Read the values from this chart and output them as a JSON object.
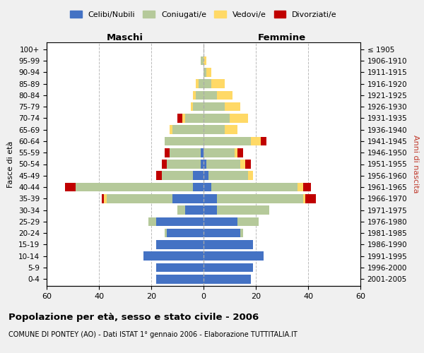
{
  "age_groups": [
    "0-4",
    "5-9",
    "10-14",
    "15-19",
    "20-24",
    "25-29",
    "30-34",
    "35-39",
    "40-44",
    "45-49",
    "50-54",
    "55-59",
    "60-64",
    "65-69",
    "70-74",
    "75-79",
    "80-84",
    "85-89",
    "90-94",
    "95-99",
    "100+"
  ],
  "birth_years": [
    "2001-2005",
    "1996-2000",
    "1991-1995",
    "1986-1990",
    "1981-1985",
    "1976-1980",
    "1971-1975",
    "1966-1970",
    "1961-1965",
    "1956-1960",
    "1951-1955",
    "1946-1950",
    "1941-1945",
    "1936-1940",
    "1931-1935",
    "1926-1930",
    "1921-1925",
    "1916-1920",
    "1911-1915",
    "1906-1910",
    "≤ 1905"
  ],
  "male": {
    "celibi": [
      18,
      18,
      23,
      18,
      14,
      18,
      7,
      12,
      4,
      4,
      1,
      1,
      0,
      0,
      0,
      0,
      0,
      0,
      0,
      0,
      0
    ],
    "coniugati": [
      0,
      0,
      0,
      0,
      1,
      3,
      3,
      25,
      45,
      12,
      13,
      12,
      15,
      12,
      7,
      4,
      3,
      2,
      0,
      1,
      0
    ],
    "vedovi": [
      0,
      0,
      0,
      0,
      0,
      0,
      0,
      1,
      0,
      0,
      0,
      0,
      0,
      1,
      1,
      1,
      1,
      1,
      0,
      0,
      0
    ],
    "divorziati": [
      0,
      0,
      0,
      0,
      0,
      0,
      0,
      1,
      4,
      2,
      2,
      2,
      0,
      0,
      2,
      0,
      0,
      0,
      0,
      0,
      0
    ]
  },
  "female": {
    "nubili": [
      18,
      19,
      23,
      19,
      14,
      13,
      5,
      5,
      3,
      2,
      1,
      0,
      0,
      0,
      0,
      0,
      0,
      0,
      0,
      0,
      0
    ],
    "coniugate": [
      0,
      0,
      0,
      0,
      1,
      8,
      20,
      33,
      33,
      15,
      13,
      12,
      18,
      8,
      10,
      8,
      5,
      3,
      1,
      0,
      0
    ],
    "vedove": [
      0,
      0,
      0,
      0,
      0,
      0,
      0,
      1,
      2,
      2,
      2,
      1,
      4,
      5,
      7,
      6,
      6,
      5,
      2,
      1,
      0
    ],
    "divorziate": [
      0,
      0,
      0,
      0,
      0,
      0,
      0,
      4,
      3,
      0,
      2,
      2,
      2,
      0,
      0,
      0,
      0,
      0,
      0,
      0,
      0
    ]
  },
  "color_celibi": "#4472c4",
  "color_coniugati": "#b5c99a",
  "color_vedovi": "#ffd966",
  "color_divorziati": "#c00000",
  "title": "Popolazione per età, sesso e stato civile - 2006",
  "subtitle": "COMUNE DI PONTEY (AO) - Dati ISTAT 1° gennaio 2006 - Elaborazione TUTTITALIA.IT",
  "xlabel_left": "Maschi",
  "xlabel_right": "Femmine",
  "ylabel_left": "Fasce di età",
  "ylabel_right": "Anni di nascita",
  "xlim": 60,
  "bg_color": "#f0f0f0",
  "plot_bg": "#ffffff"
}
